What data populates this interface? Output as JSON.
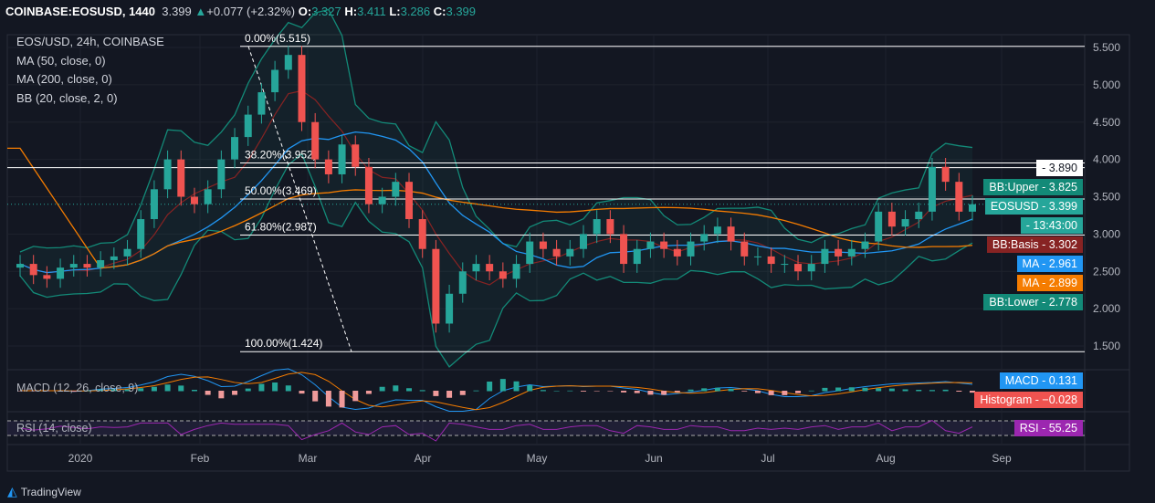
{
  "header": {
    "symbol": "COINBASE:EOSUSD, 1440",
    "last": "3.399",
    "change": "+0.077 (+2.32%)",
    "o_label": "O:",
    "o": "3.327",
    "h_label": "H:",
    "h": "3.411",
    "l_label": "L:",
    "l": "3.286",
    "c_label": "C:",
    "c": "3.399"
  },
  "legend": {
    "title": "EOS/USD, 24h, COINBASE",
    "ma50": "MA (50, close, 0)",
    "ma200": "MA (200, close, 0)",
    "bb": "BB (20, close, 2, 0)",
    "macd": "MACD (12, 26, close, 9)",
    "rsi": "RSI (14, close)"
  },
  "price_tags": [
    {
      "label": "",
      "value": "3.890",
      "bg": "#ffffff",
      "fg": "#131722",
      "price": 3.89
    },
    {
      "label": "BB:Upper",
      "value": "3.825",
      "bg": "#138a78",
      "fg": "#fff",
      "price": 3.825
    },
    {
      "label": "EOSUSD",
      "value": "3.399",
      "bg": "#26a69a",
      "fg": "#fff",
      "price": 3.399
    },
    {
      "label": "",
      "value": "13:43:00",
      "bg": "#26a69a",
      "fg": "#fff",
      "price": 3.15
    },
    {
      "label": "BB:Basis",
      "value": "3.302",
      "bg": "#872323",
      "fg": "#fff",
      "price": 2.93
    },
    {
      "label": "MA",
      "value": "2.961",
      "bg": "#2196f3",
      "fg": "#fff",
      "price": 2.68
    },
    {
      "label": "MA",
      "value": "2.899",
      "bg": "#f57c00",
      "fg": "#fff",
      "price": 2.43
    },
    {
      "label": "BB:Lower",
      "value": "2.778",
      "bg": "#138a78",
      "fg": "#fff",
      "price": 2.17
    }
  ],
  "macd_tags": [
    {
      "label": "MACD",
      "value": "0.131",
      "bg": "#2196f3"
    },
    {
      "label": "Histogram",
      "value": "−0.028",
      "bg": "#ef5350"
    }
  ],
  "rsi_tag": {
    "label": "RSI",
    "value": "55.25",
    "bg": "#9c27b0"
  },
  "branding": "TradingView",
  "chart_data": {
    "type": "candlestick",
    "title": "EOS/USD, 24h, COINBASE",
    "y_ticks": [
      "1.500",
      "2.000",
      "2.500",
      "3.000",
      "3.500",
      "4.000",
      "4.500",
      "5.000",
      "5.500"
    ],
    "ylim": [
      1.5,
      5.5
    ],
    "x_ticks": [
      "2020",
      "Feb",
      "Mar",
      "Apr",
      "May",
      "Jun",
      "Jul",
      "Aug",
      "Sep"
    ],
    "fib_levels": [
      {
        "label": "0.00%(5.515)",
        "price": 5.515
      },
      {
        "label": "38.20%(3.952)",
        "price": 3.952
      },
      {
        "label": "50.00%(3.469)",
        "price": 3.469
      },
      {
        "label": "61.80%(2.987)",
        "price": 2.987
      },
      {
        "label": "100.00%(1.424)",
        "price": 1.424
      }
    ],
    "closes": [
      2.6,
      2.45,
      2.4,
      2.55,
      2.6,
      2.55,
      2.65,
      2.7,
      2.8,
      3.2,
      3.6,
      4.0,
      3.5,
      3.4,
      3.6,
      4.0,
      4.3,
      4.6,
      4.9,
      5.2,
      5.4,
      4.5,
      4.0,
      3.8,
      4.2,
      3.9,
      3.4,
      3.5,
      3.7,
      3.2,
      2.8,
      1.8,
      2.2,
      2.5,
      2.6,
      2.5,
      2.4,
      2.6,
      2.9,
      2.8,
      2.7,
      2.8,
      3.0,
      3.2,
      3.0,
      2.6,
      2.8,
      2.9,
      2.8,
      2.7,
      2.9,
      3.0,
      3.1,
      2.9,
      2.7,
      2.7,
      2.6,
      2.6,
      2.5,
      2.6,
      2.8,
      2.7,
      2.8,
      2.9,
      3.3,
      3.1,
      3.2,
      3.3,
      3.9,
      3.7,
      3.3,
      3.399
    ],
    "rsi_value": 55.25,
    "macd_value": 0.131,
    "histogram_value": -0.028
  }
}
